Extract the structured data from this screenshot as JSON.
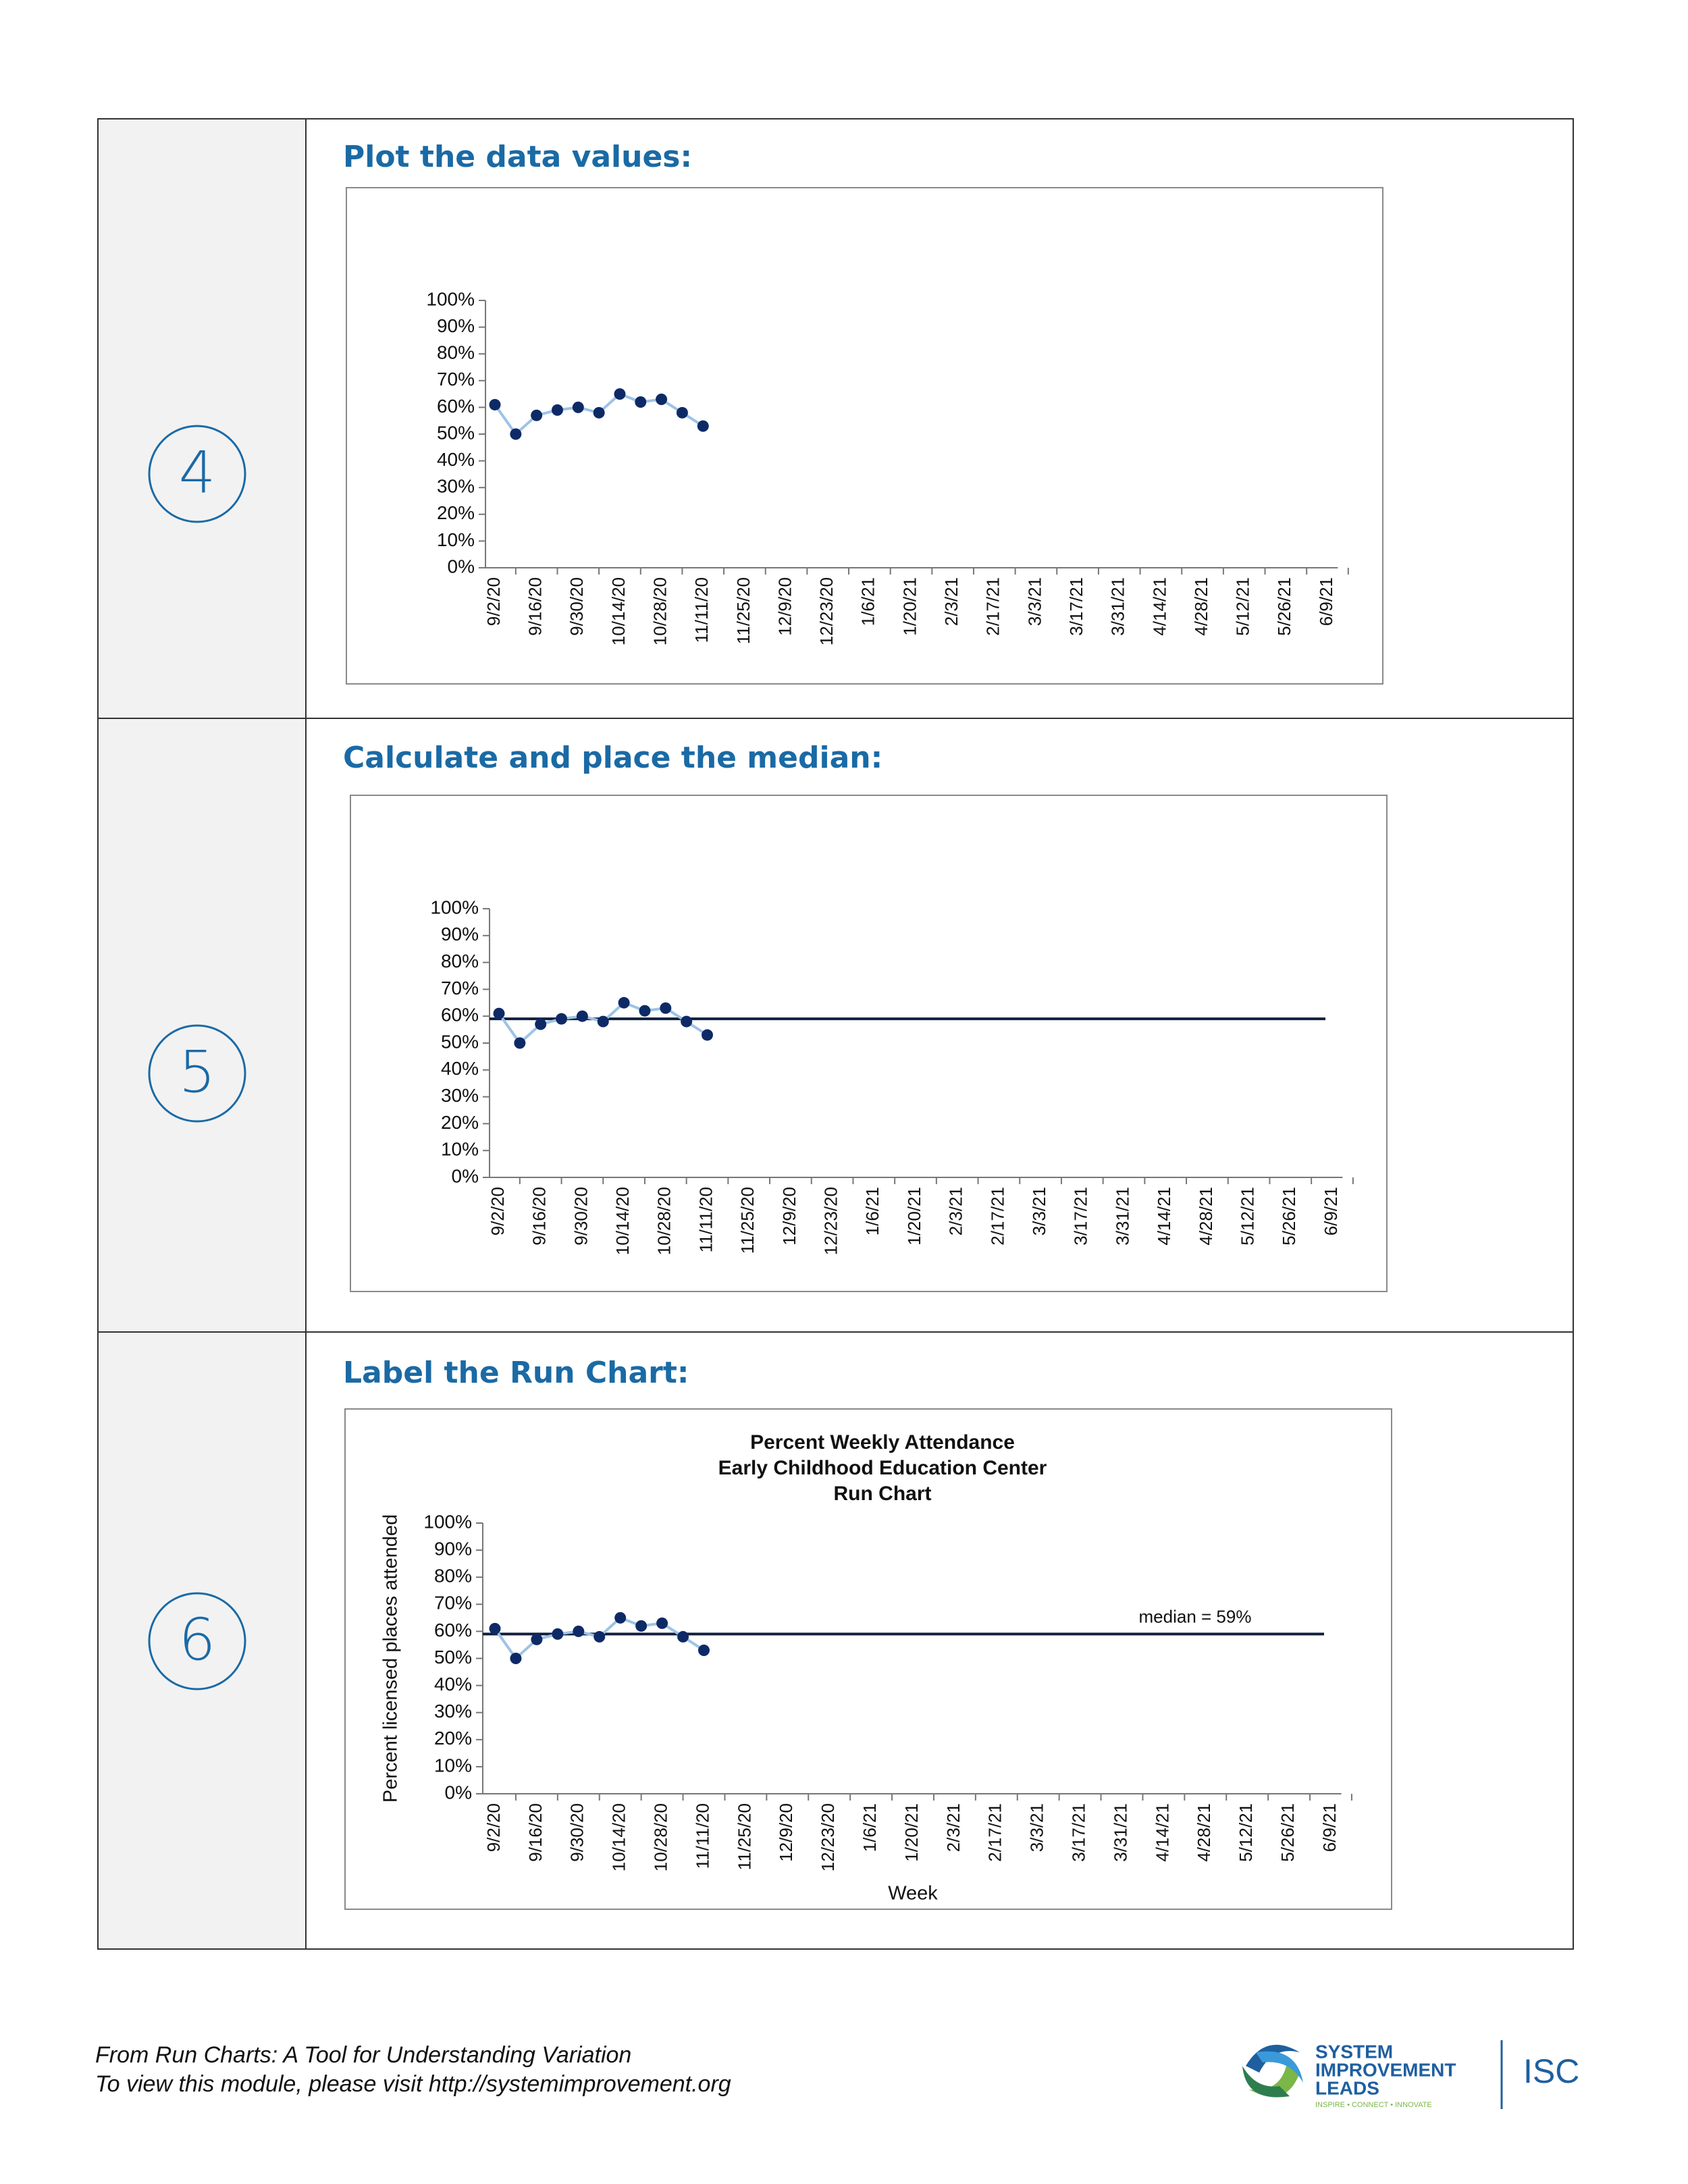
{
  "steps": [
    {
      "number": "4",
      "heading": "Plot the data values:"
    },
    {
      "number": "5",
      "heading": "Calculate and place the median:"
    },
    {
      "number": "6",
      "heading": "Label the Run Chart:"
    }
  ],
  "chart_data": [
    {
      "type": "line",
      "categories": [
        "9/2/20",
        null,
        "9/16/20",
        null,
        "9/30/20",
        null,
        "10/14/20",
        null,
        "10/28/20",
        null,
        "11/11/20",
        null,
        "11/25/20",
        null,
        "12/9/20",
        null,
        "12/23/20",
        null,
        "1/6/21",
        null,
        "1/20/21",
        null,
        "2/3/21",
        null,
        "2/17/21",
        null,
        "3/3/21",
        null,
        "3/17/21",
        null,
        "3/31/21",
        null,
        "4/14/21",
        null,
        "4/28/21",
        null,
        "5/12/21",
        null,
        "5/26/21",
        null,
        "6/9/21"
      ],
      "series": [
        {
          "color": "#9dc3e6",
          "marker_color": "#0e2a66",
          "values": [
            61,
            50,
            57,
            59,
            60,
            58,
            65,
            62,
            63,
            58,
            53,
            null,
            null,
            null,
            null,
            null,
            null,
            null,
            null,
            null,
            null,
            null,
            null,
            null,
            null,
            null,
            null,
            null,
            null,
            null,
            null,
            null,
            null,
            null,
            null,
            null,
            null,
            null,
            null,
            null,
            null
          ]
        }
      ],
      "ylim": [
        0,
        100
      ],
      "yticks": [
        {
          "value": 0,
          "label": "0%"
        },
        {
          "value": 10,
          "label": "10%"
        },
        {
          "value": 20,
          "label": "20%"
        },
        {
          "value": 30,
          "label": "30%"
        },
        {
          "value": 40,
          "label": "40%"
        },
        {
          "value": 50,
          "label": "50%"
        },
        {
          "value": 60,
          "label": "60%"
        },
        {
          "value": 70,
          "label": "70%"
        },
        {
          "value": 80,
          "label": "80%"
        },
        {
          "value": 90,
          "label": "90%"
        },
        {
          "value": 100,
          "label": "100%"
        }
      ]
    },
    {
      "type": "line",
      "categories": [
        "9/2/20",
        null,
        "9/16/20",
        null,
        "9/30/20",
        null,
        "10/14/20",
        null,
        "10/28/20",
        null,
        "11/11/20",
        null,
        "11/25/20",
        null,
        "12/9/20",
        null,
        "12/23/20",
        null,
        "1/6/21",
        null,
        "1/20/21",
        null,
        "2/3/21",
        null,
        "2/17/21",
        null,
        "3/3/21",
        null,
        "3/17/21",
        null,
        "3/31/21",
        null,
        "4/14/21",
        null,
        "4/28/21",
        null,
        "5/12/21",
        null,
        "5/26/21",
        null,
        "6/9/21"
      ],
      "series": [
        {
          "color": "#9dc3e6",
          "marker_color": "#0e2a66",
          "values": [
            61,
            50,
            57,
            59,
            60,
            58,
            65,
            62,
            63,
            58,
            53,
            null,
            null,
            null,
            null,
            null,
            null,
            null,
            null,
            null,
            null,
            null,
            null,
            null,
            null,
            null,
            null,
            null,
            null,
            null,
            null,
            null,
            null,
            null,
            null,
            null,
            null,
            null,
            null,
            null,
            null
          ]
        }
      ],
      "median": {
        "value": 59,
        "color": "#0f1f3d"
      },
      "ylim": [
        0,
        100
      ],
      "yticks": [
        {
          "value": 0,
          "label": "0%"
        },
        {
          "value": 10,
          "label": "10%"
        },
        {
          "value": 20,
          "label": "20%"
        },
        {
          "value": 30,
          "label": "30%"
        },
        {
          "value": 40,
          "label": "40%"
        },
        {
          "value": 50,
          "label": "50%"
        },
        {
          "value": 60,
          "label": "60%"
        },
        {
          "value": 70,
          "label": "70%"
        },
        {
          "value": 80,
          "label": "80%"
        },
        {
          "value": 90,
          "label": "90%"
        },
        {
          "value": 100,
          "label": "100%"
        }
      ]
    },
    {
      "type": "line",
      "title": [
        "Percent Weekly Attendance",
        "Early Childhood Education Center",
        "Run Chart"
      ],
      "y_label": "Percent licensed places attended",
      "x_label": "Week",
      "categories": [
        "9/2/20",
        null,
        "9/16/20",
        null,
        "9/30/20",
        null,
        "10/14/20",
        null,
        "10/28/20",
        null,
        "11/11/20",
        null,
        "11/25/20",
        null,
        "12/9/20",
        null,
        "12/23/20",
        null,
        "1/6/21",
        null,
        "1/20/21",
        null,
        "2/3/21",
        null,
        "2/17/21",
        null,
        "3/3/21",
        null,
        "3/17/21",
        null,
        "3/31/21",
        null,
        "4/14/21",
        null,
        "4/28/21",
        null,
        "5/12/21",
        null,
        "5/26/21",
        null,
        "6/9/21"
      ],
      "series": [
        {
          "color": "#9dc3e6",
          "marker_color": "#0e2a66",
          "values": [
            61,
            50,
            57,
            59,
            60,
            58,
            65,
            62,
            63,
            58,
            53,
            null,
            null,
            null,
            null,
            null,
            null,
            null,
            null,
            null,
            null,
            null,
            null,
            null,
            null,
            null,
            null,
            null,
            null,
            null,
            null,
            null,
            null,
            null,
            null,
            null,
            null,
            null,
            null,
            null,
            null
          ]
        }
      ],
      "median": {
        "value": 59,
        "label": "median = 59%",
        "color": "#0f1f3d"
      },
      "ylim": [
        0,
        100
      ],
      "yticks": [
        {
          "value": 0,
          "label": "0%"
        },
        {
          "value": 10,
          "label": "10%"
        },
        {
          "value": 20,
          "label": "20%"
        },
        {
          "value": 30,
          "label": "30%"
        },
        {
          "value": 40,
          "label": "40%"
        },
        {
          "value": 50,
          "label": "50%"
        },
        {
          "value": 60,
          "label": "60%"
        },
        {
          "value": 70,
          "label": "70%"
        },
        {
          "value": 80,
          "label": "80%"
        },
        {
          "value": 90,
          "label": "90%"
        },
        {
          "value": 100,
          "label": "100%"
        }
      ]
    }
  ],
  "footer": {
    "source": "From Run Charts: A Tool for Understanding Variation",
    "link": "To view this module, please visit http://systemimprovement.org"
  },
  "logo": {
    "line1": "SYSTEM",
    "line2": "IMPROVEMENT",
    "line3": "LEADS",
    "tagline": "INSPIRE • CONNECT • INNOVATE",
    "partner": "ISC"
  }
}
